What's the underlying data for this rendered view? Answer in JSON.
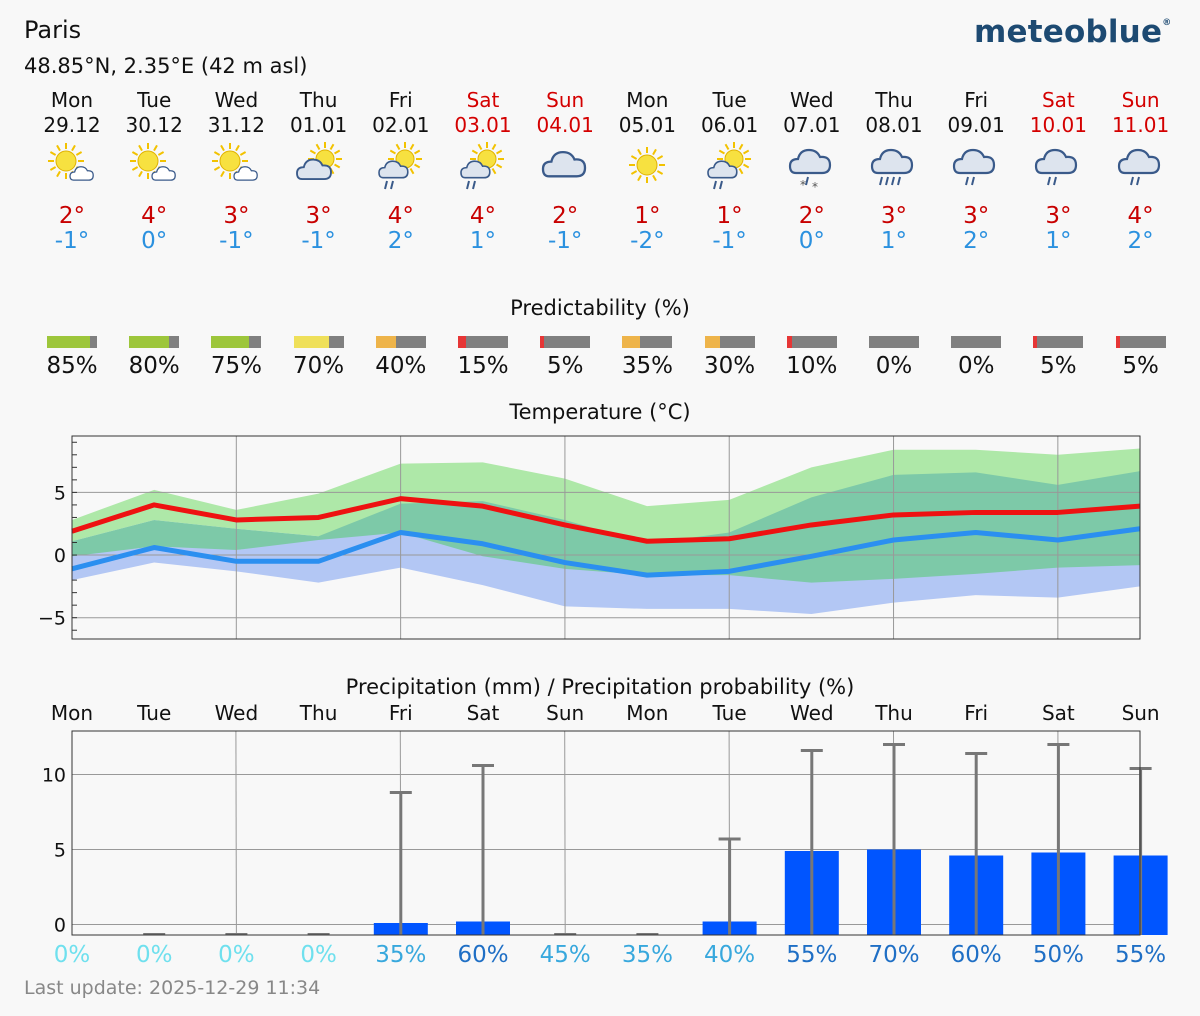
{
  "header": {
    "city": "Paris",
    "coords": "48.85°N, 2.35°E (42 m asl)",
    "brand": "meteoblue",
    "brand_mark": "®",
    "last_update": "Last update: 2025-12-29 11:34"
  },
  "days": [
    {
      "name": "Mon",
      "date": "29.12",
      "weekend": false,
      "icon": "sun-cloud-icon",
      "max": "2°",
      "min": "-1°"
    },
    {
      "name": "Tue",
      "date": "30.12",
      "weekend": false,
      "icon": "sun-cloud-icon",
      "max": "4°",
      "min": "0°"
    },
    {
      "name": "Wed",
      "date": "31.12",
      "weekend": false,
      "icon": "sun-cloud-icon",
      "max": "3°",
      "min": "-1°"
    },
    {
      "name": "Thu",
      "date": "01.01",
      "weekend": false,
      "icon": "cloud-sun-icon",
      "max": "3°",
      "min": "-1°"
    },
    {
      "name": "Fri",
      "date": "02.01",
      "weekend": false,
      "icon": "sun-rain-icon",
      "max": "4°",
      "min": "2°"
    },
    {
      "name": "Sat",
      "date": "03.01",
      "weekend": true,
      "icon": "sun-rain-icon",
      "max": "4°",
      "min": "1°"
    },
    {
      "name": "Sun",
      "date": "04.01",
      "weekend": true,
      "icon": "cloud-icon",
      "max": "2°",
      "min": "-1°"
    },
    {
      "name": "Mon",
      "date": "05.01",
      "weekend": false,
      "icon": "sun-icon",
      "max": "1°",
      "min": "-2°"
    },
    {
      "name": "Tue",
      "date": "06.01",
      "weekend": false,
      "icon": "sun-rain-icon",
      "max": "1°",
      "min": "-1°"
    },
    {
      "name": "Wed",
      "date": "07.01",
      "weekend": false,
      "icon": "cloud-snow-icon",
      "max": "2°",
      "min": "0°"
    },
    {
      "name": "Thu",
      "date": "08.01",
      "weekend": false,
      "icon": "cloud-heavy-rain-icon",
      "max": "3°",
      "min": "1°"
    },
    {
      "name": "Fri",
      "date": "09.01",
      "weekend": false,
      "icon": "cloud-rain-icon",
      "max": "3°",
      "min": "2°"
    },
    {
      "name": "Sat",
      "date": "10.01",
      "weekend": true,
      "icon": "cloud-rain-icon",
      "max": "3°",
      "min": "1°"
    },
    {
      "name": "Sun",
      "date": "11.01",
      "weekend": true,
      "icon": "cloud-rain-icon",
      "max": "4°",
      "min": "2°"
    }
  ],
  "predictability": {
    "title": "Predictability (%)",
    "labels": [
      "85%",
      "80%",
      "75%",
      "70%",
      "40%",
      "15%",
      "5%",
      "35%",
      "30%",
      "10%",
      "0%",
      "0%",
      "5%",
      "5%"
    ],
    "values": [
      85,
      80,
      75,
      70,
      40,
      15,
      5,
      35,
      30,
      10,
      0,
      0,
      5,
      5
    ],
    "colors": [
      "#9dc63b",
      "#9dc63b",
      "#9dc63b",
      "#efe05a",
      "#eeb44a",
      "#e63636",
      "#e63636",
      "#eeb44a",
      "#eeb44a",
      "#e63636",
      "#e63636",
      "#e63636",
      "#e63636",
      "#e63636"
    ]
  },
  "chart_data": [
    {
      "type": "line",
      "title": "Temperature (°C)",
      "ylim": [
        -6.7,
        9.5
      ],
      "yticks": [
        5,
        0,
        -5
      ],
      "ytick_labels": [
        "5",
        "0",
        "−5"
      ],
      "x": [
        0,
        1,
        2,
        3,
        4,
        5,
        6,
        7,
        8,
        9,
        10,
        11,
        12,
        13
      ],
      "series": [
        {
          "color": "#ee1111",
          "values": [
            1.9,
            4.0,
            2.8,
            3.0,
            4.5,
            3.9,
            2.4,
            1.1,
            1.3,
            2.4,
            3.2,
            3.4,
            3.4,
            3.9
          ]
        },
        {
          "color": "#2b8ff0",
          "values": [
            -1.1,
            0.6,
            -0.5,
            -0.5,
            1.8,
            0.9,
            -0.6,
            -1.6,
            -1.3,
            -0.1,
            1.2,
            1.8,
            1.2,
            2.1
          ]
        }
      ],
      "bands": [
        {
          "color": "#b3c7f4",
          "upper": [
            -0.1,
            1.7,
            0.4,
            1.4,
            1.8,
            1.2,
            0.7,
            -1.3,
            -1.0,
            0.5,
            1.6,
            2.2,
            2.2,
            2.6
          ],
          "lower": [
            -2.0,
            -0.6,
            -1.3,
            -2.2,
            -1.0,
            -2.4,
            -4.1,
            -4.3,
            -4.3,
            -4.7,
            -3.8,
            -3.2,
            -3.4,
            -2.5
          ]
        },
        {
          "color": "#aee8a8",
          "upper": [
            2.8,
            5.2,
            3.6,
            4.9,
            7.3,
            7.4,
            6.1,
            3.9,
            4.4,
            7.0,
            8.4,
            8.4,
            8.0,
            8.5
          ],
          "lower": [
            1.1,
            2.8,
            2.1,
            1.5,
            2.6,
            1.8,
            0.9,
            -0.2,
            0.0,
            0.8,
            1.6,
            1.7,
            1.9,
            2.3
          ]
        },
        {
          "color": "#7dc9a8",
          "upper": [
            1.1,
            2.8,
            2.1,
            1.5,
            4.1,
            4.3,
            2.8,
            0.9,
            1.8,
            4.6,
            6.4,
            6.6,
            5.6,
            6.7
          ],
          "lower": [
            -0.1,
            0.7,
            0.4,
            1.2,
            1.8,
            -0.1,
            -1.1,
            -1.6,
            -1.6,
            -2.2,
            -1.9,
            -1.5,
            -1.0,
            -0.8
          ]
        }
      ]
    },
    {
      "type": "bar",
      "title": "Precipitation (mm) / Precipitation probability (%)",
      "categories": [
        "Mon",
        "Tue",
        "Wed",
        "Thu",
        "Fri",
        "Sat",
        "Sun",
        "Mon",
        "Tue",
        "Wed",
        "Thu",
        "Fri",
        "Sat",
        "Sun"
      ],
      "ylim": [
        -0.7,
        12.9
      ],
      "yticks": [
        10,
        5,
        0
      ],
      "ytick_labels": [
        "10",
        "5",
        "0"
      ],
      "bar_color": "#0055ff",
      "values": [
        0,
        0,
        0,
        0,
        0.1,
        0.2,
        0,
        0,
        0.2,
        4.9,
        5.0,
        4.6,
        4.8,
        4.6
      ],
      "max_values": [
        0,
        0.1,
        0.1,
        0.1,
        8.8,
        10.6,
        0.1,
        0.1,
        5.7,
        11.6,
        12.0,
        11.4,
        12.0,
        10.4
      ],
      "probability": [
        "0%",
        "0%",
        "0%",
        "0%",
        "35%",
        "60%",
        "45%",
        "35%",
        "40%",
        "55%",
        "70%",
        "60%",
        "50%",
        "55%"
      ],
      "probability_colors": [
        "#6fe0ee",
        "#6fe0ee",
        "#6fe0ee",
        "#6fe0ee",
        "#38a8dd",
        "#1f6fc5",
        "#38a8dd",
        "#38a8dd",
        "#38a8dd",
        "#1f6fc5",
        "#1f6fc5",
        "#1f6fc5",
        "#1f6fc5",
        "#1f6fc5"
      ]
    }
  ]
}
